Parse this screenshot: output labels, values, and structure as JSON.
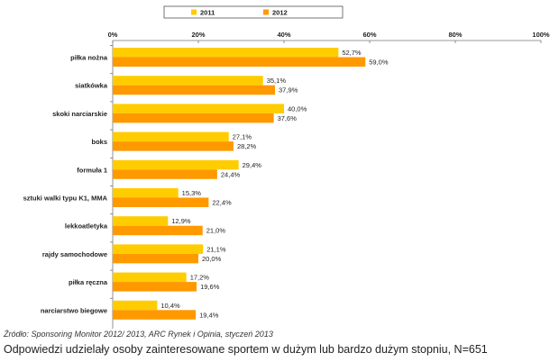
{
  "chart_data": {
    "type": "bar",
    "orientation": "horizontal",
    "categories": [
      "piłka nożna",
      "siatkówka",
      "skoki narciarskie",
      "boks",
      "formuła 1",
      "sztuki walki typu K1, MMA",
      "lekkoatletyka",
      "rajdy samochodowe",
      "piłka ręczna",
      "narciarstwo biegowe"
    ],
    "series": [
      {
        "name": "2011",
        "color": "#FFCC00",
        "values": [
          52.7,
          35.1,
          40.0,
          27.1,
          29.4,
          15.3,
          12.9,
          21.1,
          17.2,
          10.4
        ],
        "labels": [
          "52,7%",
          "35,1%",
          "40,0%",
          "27,1%",
          "29,4%",
          "15,3%",
          "12,9%",
          "21,1%",
          "17,2%",
          "10,4%"
        ]
      },
      {
        "name": "2012",
        "color": "#FF9900",
        "values": [
          59.0,
          37.9,
          37.6,
          28.2,
          24.4,
          22.4,
          21.0,
          20.0,
          19.6,
          19.4
        ],
        "labels": [
          "59,0%",
          "37,9%",
          "37,6%",
          "28,2%",
          "24,4%",
          "22,4%",
          "21,0%",
          "20,0%",
          "19,6%",
          "19,4%"
        ]
      }
    ],
    "xlim": [
      0,
      100
    ],
    "ticks": [
      "0%",
      "20%",
      "40%",
      "60%",
      "80%",
      "100%"
    ],
    "tick_values": [
      0,
      20,
      40,
      60,
      80,
      100
    ],
    "axis_position": "top",
    "grid": false,
    "legend_position": "top"
  },
  "source": "Źródło: Sponsoring Monitor 2012/ 2013, ARC Rynek i Opinia, styczeń 2013",
  "note": "Odpowiedzi udzielały osoby zainteresowane sportem w dużym lub bardzo dużym stopniu, N=651"
}
